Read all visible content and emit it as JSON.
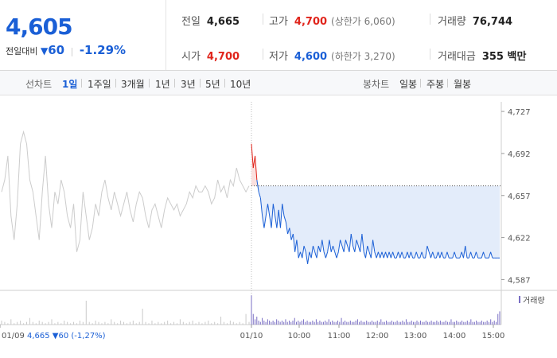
{
  "quote": {
    "price": "4,605",
    "change_label": "전일대비",
    "change_arrow": "▼",
    "change_value": "60",
    "change_pct": "-1.29%",
    "prev_label": "전일",
    "prev_value": "4,665",
    "open_label": "시가",
    "open_value": "4,700",
    "high_label": "고가",
    "high_value": "4,700",
    "high_sub": "(상한가 6,060)",
    "low_label": "저가",
    "low_value": "4,600",
    "low_sub": "(하한가 3,270)",
    "volume_label": "거래량",
    "volume_value": "76,744",
    "amount_label": "거래대금",
    "amount_value": "355 백만"
  },
  "periods": {
    "line_label": "선차트",
    "line_items": [
      "1일",
      "1주일",
      "3개월",
      "1년",
      "3년",
      "5년",
      "10년"
    ],
    "active": "1일",
    "candle_label": "봉차트",
    "candle_items": [
      "일봉",
      "주봉",
      "월봉"
    ]
  },
  "colors": {
    "up": "#e0241b",
    "down": "#1a5fd6",
    "prev_day": "#cccccc",
    "fill": "#e3ecfa"
  },
  "chart_data": {
    "type": "line",
    "prev_close": 4665,
    "ylim": [
      4580,
      4735
    ],
    "y_ticks": [
      "4,727",
      "4,692",
      "4,657",
      "4,622",
      "4,587"
    ],
    "y_tick_values": [
      4727,
      4692,
      4657,
      4622,
      4587
    ],
    "x_tick_labels": [
      "01/09",
      "01/10",
      "10:00",
      "11:00",
      "12:00",
      "13:00",
      "14:00",
      "15:00"
    ],
    "volume_label": "거래량",
    "info_text": "01/09  4,665 ▼60 (-1,27%)",
    "series": [
      {
        "day": "01/09",
        "values": [
          4660,
          4670,
          4690,
          4640,
          4620,
          4650,
          4700,
          4710,
          4700,
          4670,
          4660,
          4640,
          4620,
          4660,
          4690,
          4650,
          4630,
          4660,
          4650,
          4670,
          4660,
          4640,
          4630,
          4650,
          4610,
          4620,
          4660,
          4640,
          4620,
          4630,
          4650,
          4640,
          4660,
          4670,
          4655,
          4645,
          4660,
          4650,
          4640,
          4650,
          4660,
          4645,
          4635,
          4650,
          4660,
          4655,
          4640,
          4630,
          4645,
          4650,
          4640,
          4630,
          4645,
          4655,
          4650,
          4645,
          4650,
          4640,
          4645,
          4650,
          4660,
          4655,
          4665,
          4660,
          4660,
          4665,
          4660,
          4650,
          4655,
          4670,
          4660,
          4665,
          4655,
          4670,
          4665,
          4680,
          4670,
          4665,
          4660,
          4665
        ]
      },
      {
        "day": "01/10",
        "values": [
          4700,
          4680,
          4690,
          4670,
          4660,
          4655,
          4640,
          4630,
          4640,
          4650,
          4640,
          4630,
          4650,
          4640,
          4630,
          4645,
          4630,
          4650,
          4640,
          4635,
          4625,
          4630,
          4620,
          4625,
          4610,
          4620,
          4605,
          4610,
          4605,
          4615,
          4610,
          4600,
          4610,
          4605,
          4615,
          4610,
          4605,
          4615,
          4610,
          4620,
          4610,
          4605,
          4610,
          4620,
          4610,
          4615,
          4610,
          4605,
          4610,
          4620,
          4615,
          4610,
          4620,
          4615,
          4610,
          4625,
          4615,
          4610,
          4620,
          4615,
          4610,
          4625,
          4610,
          4605,
          4615,
          4610,
          4605,
          4620,
          4610,
          4605,
          4610,
          4605,
          4610,
          4605,
          4610,
          4605,
          4610,
          4605,
          4610,
          4605,
          4605,
          4610,
          4605,
          4610,
          4605,
          4605,
          4610,
          4605,
          4610,
          4605,
          4605,
          4610,
          4605,
          4605,
          4610,
          4605,
          4605,
          4615,
          4610,
          4605,
          4610,
          4605,
          4605,
          4610,
          4605,
          4610,
          4605,
          4605,
          4610,
          4605,
          4605,
          4605,
          4610,
          4605,
          4605,
          4605,
          4610,
          4605,
          4615,
          4605,
          4605,
          4610,
          4605,
          4605,
          4610,
          4605,
          4605,
          4605,
          4610,
          4605,
          4605,
          4605,
          4610,
          4605,
          4605,
          4605,
          4605,
          4605
        ]
      }
    ],
    "volume": {
      "01/09": [
        3,
        2,
        1,
        4,
        1,
        2,
        3,
        1,
        2,
        5,
        2,
        1,
        3,
        2,
        1,
        2,
        4,
        1,
        2,
        1,
        3,
        2,
        1,
        2,
        1,
        3,
        2,
        18,
        2,
        1,
        3,
        2,
        1,
        2,
        1,
        4,
        2,
        1,
        3,
        2,
        1,
        2,
        3,
        1,
        2,
        12,
        2,
        1,
        3,
        1,
        2,
        1,
        2,
        3,
        1,
        2,
        1,
        4,
        2,
        1,
        2,
        3,
        1,
        2,
        1,
        2,
        3,
        1,
        2,
        1,
        6,
        2,
        1,
        3,
        2,
        1,
        2,
        1,
        8,
        2
      ],
      "01/10": [
        22,
        8,
        4,
        6,
        3,
        2,
        5,
        3,
        2,
        4,
        3,
        2,
        3,
        2,
        4,
        3,
        2,
        3,
        2,
        4,
        2,
        3,
        2,
        3,
        5,
        2,
        3,
        2,
        3,
        4,
        2,
        3,
        2,
        2,
        3,
        2,
        4,
        2,
        3,
        2,
        2,
        3,
        2,
        4,
        2,
        3,
        2,
        2,
        3,
        2,
        5,
        2,
        3,
        2,
        2,
        3,
        2,
        2,
        3,
        4,
        2,
        3,
        2,
        2,
        3,
        2,
        2,
        3,
        2,
        2,
        3,
        2,
        4,
        2,
        2,
        3,
        2,
        2,
        3,
        2,
        2,
        3,
        2,
        2,
        3,
        2,
        4,
        2,
        2,
        3,
        2,
        2,
        3,
        2,
        3,
        2,
        2,
        3,
        2,
        2,
        3,
        2,
        2,
        3,
        2,
        3,
        2,
        2,
        3,
        2,
        2,
        4,
        2,
        2,
        3,
        2,
        2,
        3,
        2,
        2,
        3,
        2,
        4,
        2,
        2,
        3,
        2,
        2,
        3,
        2,
        2,
        3,
        2,
        4,
        2,
        3,
        2,
        8,
        10
      ]
    }
  }
}
